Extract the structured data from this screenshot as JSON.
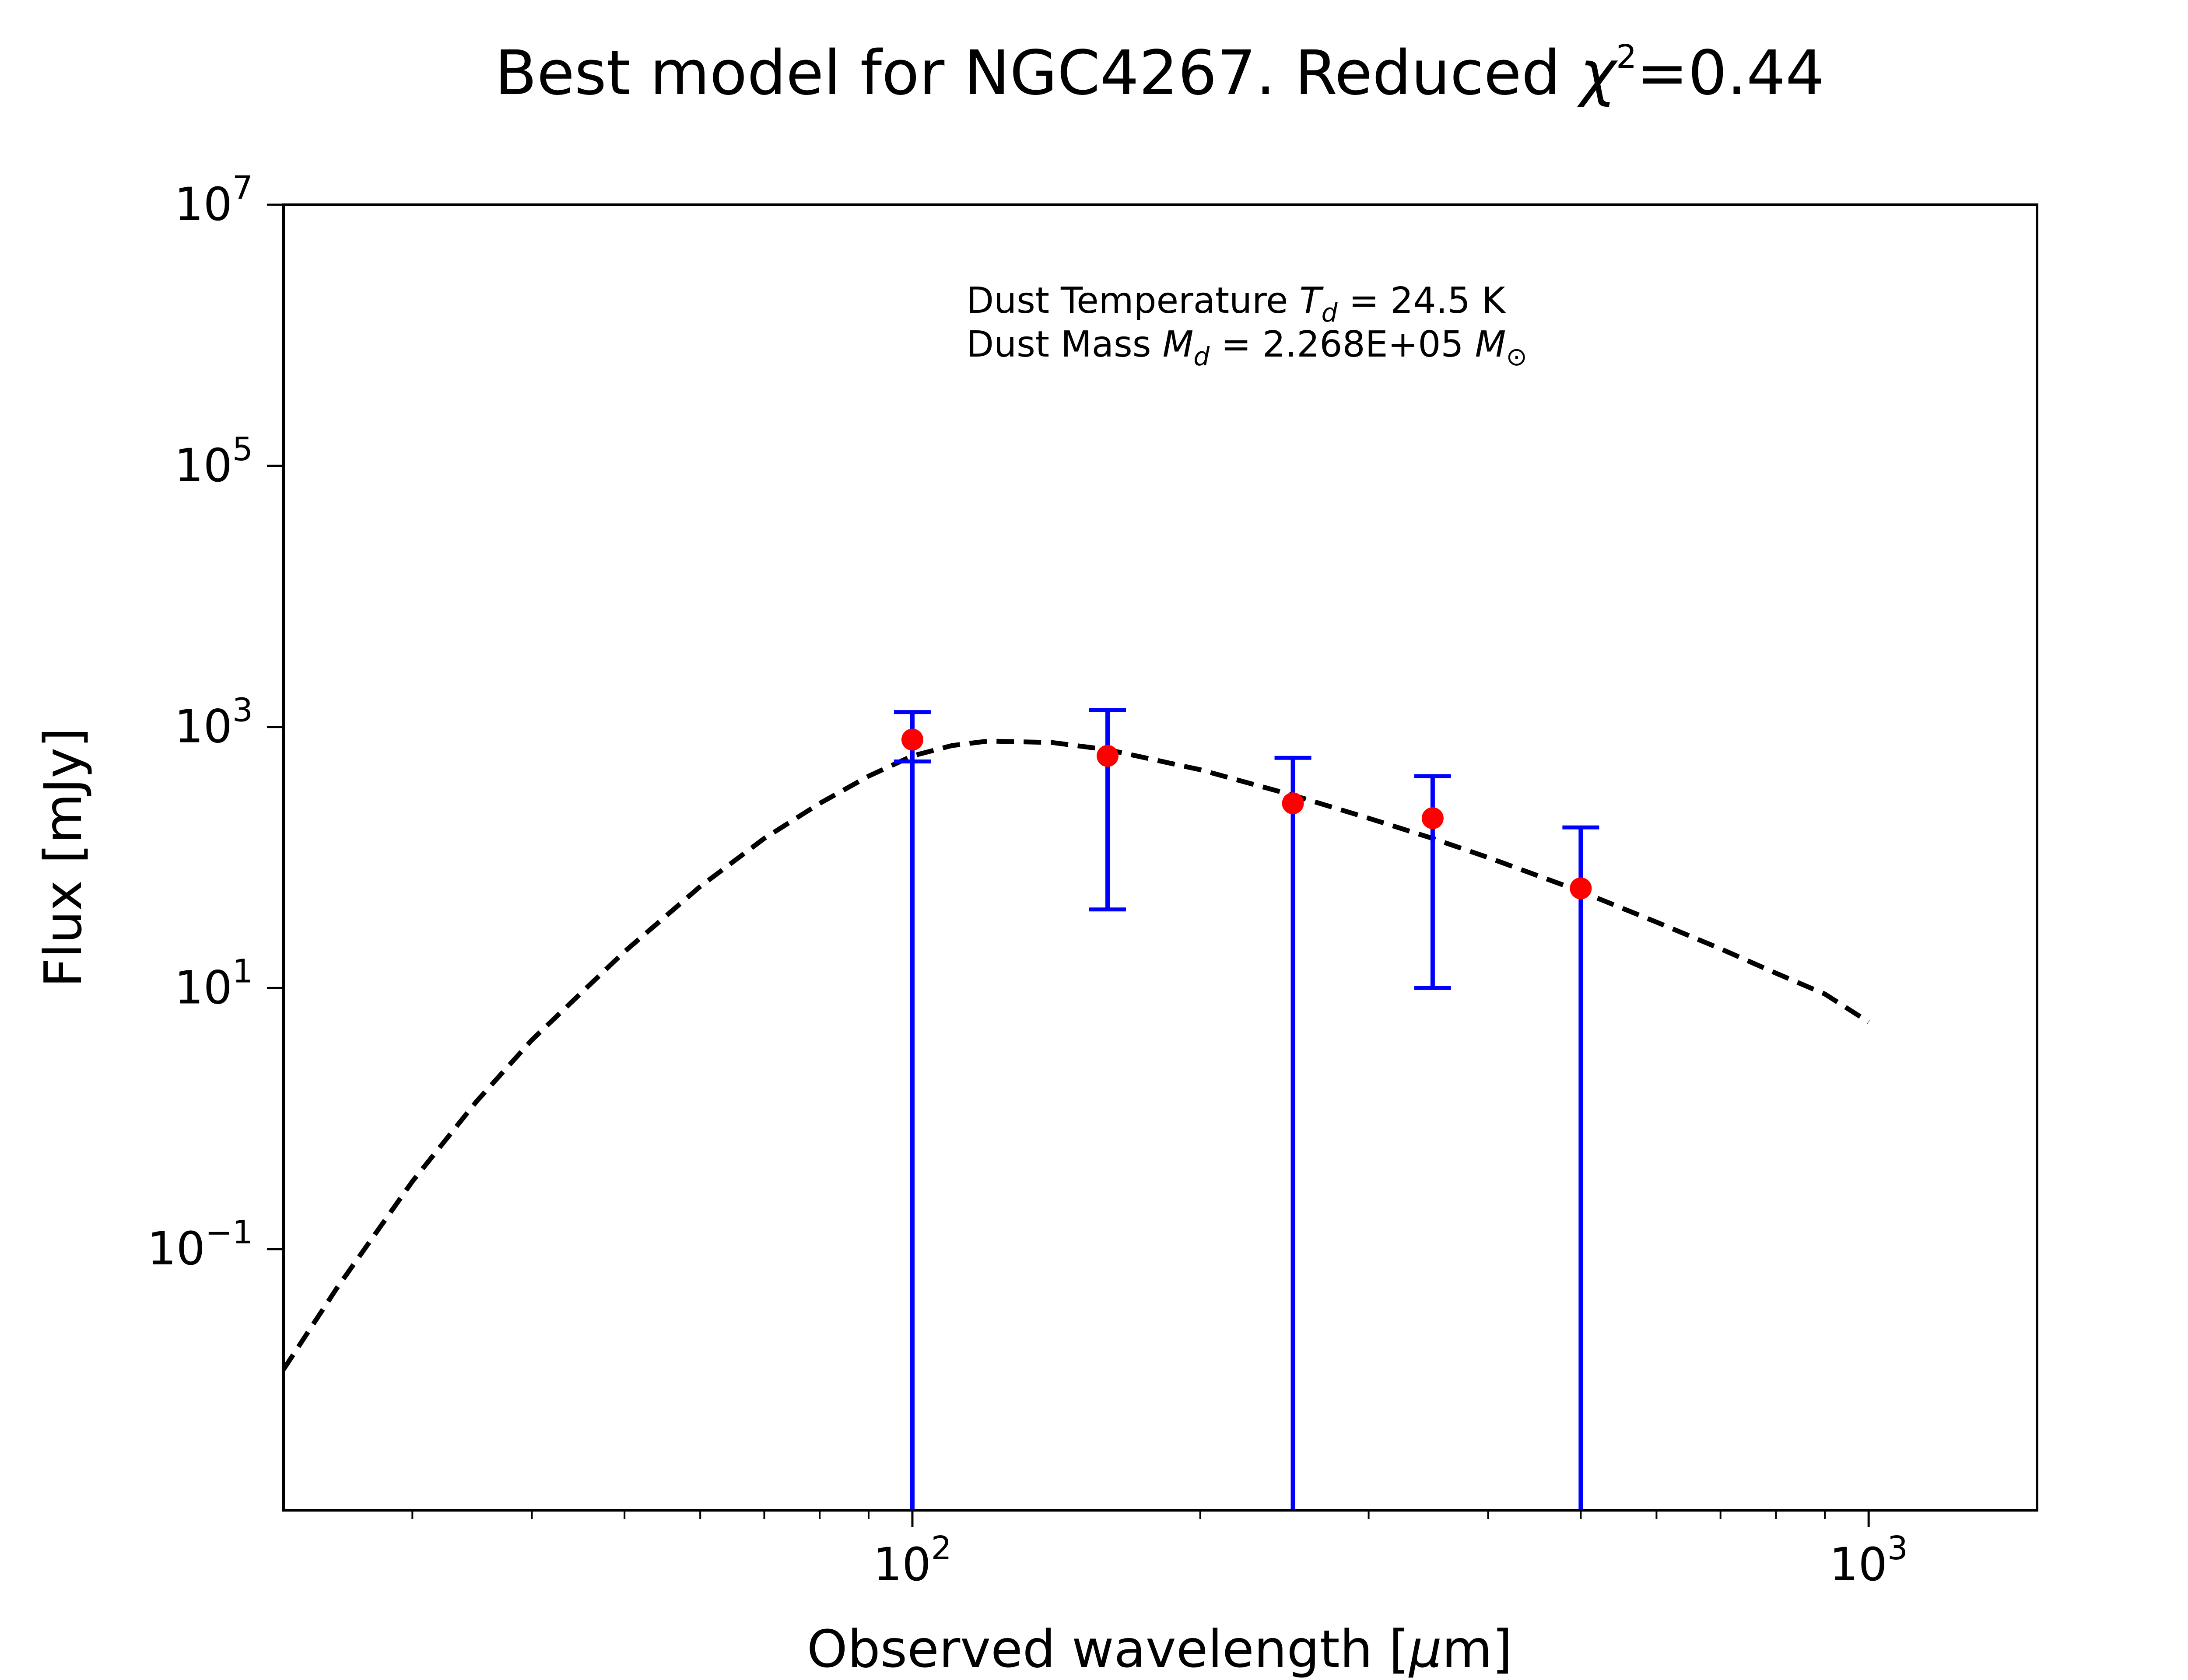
{
  "title": {
    "prefix": "Best model for NGC4267. Reduced ",
    "chi": "χ",
    "sup": "2",
    "suffix": "=0.44"
  },
  "annotation": {
    "line1": {
      "text": "Dust Temperature ",
      "sym": "T",
      "sub": "d",
      "value": " = 24.5 K"
    },
    "line2": {
      "text": "Dust Mass ",
      "sym": "M",
      "sub": "d",
      "value": " = 2.268E+05 ",
      "unit_sym": "M",
      "unit_sub": "⊙"
    }
  },
  "chart_data": {
    "type": "scatter",
    "xlabel": {
      "prefix": "Observed wavelength [",
      "mu": "μ",
      "suffix": "m]"
    },
    "ylabel": "Flux [mJy]",
    "xscale": "log",
    "yscale": "log",
    "xlim": [
      22,
      1500
    ],
    "ylim": [
      0.001,
      10000000
    ],
    "x_ticks": [
      {
        "value": 100,
        "base": "10",
        "exp": "2"
      },
      {
        "value": 1000,
        "base": "10",
        "exp": "3"
      }
    ],
    "y_ticks": [
      {
        "value": 10000000,
        "base": "10",
        "exp": "7"
      },
      {
        "value": 100000,
        "base": "10",
        "exp": "5"
      },
      {
        "value": 1000,
        "base": "10",
        "exp": "3"
      },
      {
        "value": 10,
        "base": "10",
        "exp": "1"
      },
      {
        "value": 0.1,
        "base": "10",
        "exp": "−1"
      }
    ],
    "points": [
      {
        "x": 100,
        "y": 800,
        "ylow": 0.001,
        "yhigh": 1300,
        "low_cap": false
      },
      {
        "x": 160,
        "y": 600,
        "ylow": 40,
        "yhigh": 1350,
        "low_cap": true
      },
      {
        "x": 250,
        "y": 260,
        "ylow": 0.001,
        "yhigh": 580,
        "low_cap": false
      },
      {
        "x": 350,
        "y": 200,
        "ylow": 10,
        "yhigh": 420,
        "low_cap": true
      },
      {
        "x": 500,
        "y": 58,
        "ylow": 0.001,
        "yhigh": 170,
        "low_cap": false
      }
    ],
    "model": {
      "x": [
        22,
        25,
        30,
        35,
        40,
        50,
        60,
        70,
        80,
        90,
        100,
        110,
        120,
        140,
        160,
        200,
        250,
        300,
        350,
        400,
        500,
        600,
        700,
        800,
        900,
        1000
      ],
      "y": [
        0.012,
        0.05,
        0.33,
        1.35,
        4,
        19,
        60,
        140,
        260,
        420,
        600,
        720,
        780,
        760,
        670,
        470,
        300,
        200,
        140,
        100,
        55,
        32,
        20,
        13,
        9,
        5.5
      ]
    },
    "grid": false,
    "colors": {
      "points": "#ff0000",
      "errorbars": "#0000ff",
      "model": "#000000"
    }
  }
}
